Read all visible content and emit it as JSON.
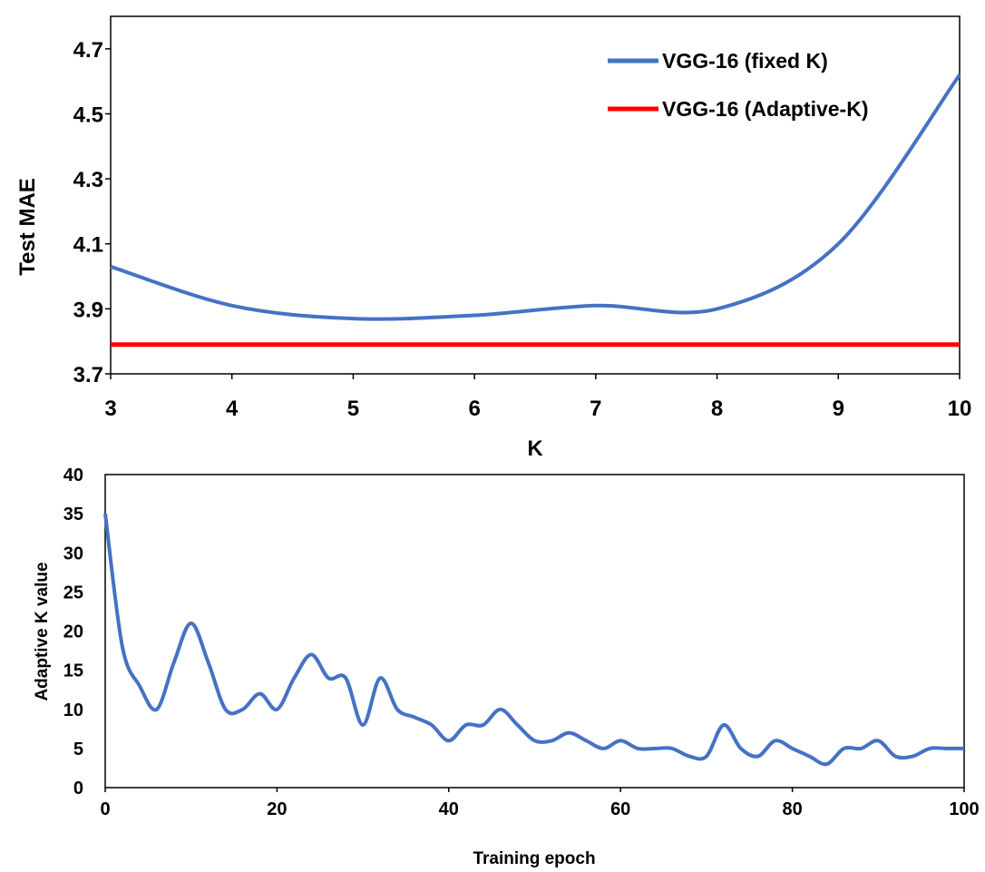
{
  "chart_data": [
    {
      "type": "line",
      "title": "",
      "xlabel": "K",
      "ylabel": "Test MAE",
      "xlim": [
        3,
        10
      ],
      "ylim": [
        3.7,
        4.8
      ],
      "xticks": [
        3,
        4,
        5,
        6,
        7,
        8,
        9,
        10
      ],
      "yticks": [
        3.7,
        3.9,
        4.1,
        4.3,
        4.5,
        4.7
      ],
      "legend_position": "top-right",
      "series": [
        {
          "name": "VGG-16 (fixed K)",
          "color": "#4472c4",
          "x": [
            3,
            4,
            5,
            6,
            7,
            8,
            9,
            10
          ],
          "y": [
            4.03,
            3.91,
            3.87,
            3.88,
            3.91,
            3.9,
            4.1,
            4.62
          ]
        },
        {
          "name": "VGG-16 (Adaptive-K)",
          "color": "#ff0000",
          "x": [
            3,
            10
          ],
          "y": [
            3.79,
            3.79
          ]
        }
      ]
    },
    {
      "type": "line",
      "title": "",
      "xlabel": "Training epoch",
      "ylabel": "Adaptive K value",
      "xlim": [
        0,
        100
      ],
      "ylim": [
        0,
        40
      ],
      "xticks": [
        0,
        20,
        40,
        60,
        80,
        100
      ],
      "yticks": [
        0,
        5,
        10,
        15,
        20,
        25,
        30,
        35,
        40
      ],
      "series": [
        {
          "name": "Adaptive K",
          "color": "#4472c4",
          "x": [
            0,
            2,
            4,
            6,
            8,
            10,
            12,
            14,
            16,
            18,
            20,
            22,
            24,
            26,
            28,
            30,
            32,
            34,
            36,
            38,
            40,
            42,
            44,
            46,
            48,
            50,
            52,
            54,
            56,
            58,
            60,
            62,
            64,
            66,
            68,
            70,
            72,
            74,
            76,
            78,
            80,
            82,
            84,
            86,
            88,
            90,
            92,
            94,
            96,
            98,
            100
          ],
          "y": [
            35,
            18,
            13,
            10,
            16,
            21,
            16,
            10,
            10,
            12,
            10,
            14,
            17,
            14,
            14,
            8,
            14,
            10,
            9,
            8,
            6,
            8,
            8,
            10,
            8,
            6,
            6,
            7,
            6,
            5,
            6,
            5,
            5,
            5,
            4,
            4,
            8,
            5,
            4,
            6,
            5,
            4,
            3,
            5,
            5,
            6,
            4,
            4,
            5,
            5,
            5
          ]
        }
      ]
    }
  ]
}
